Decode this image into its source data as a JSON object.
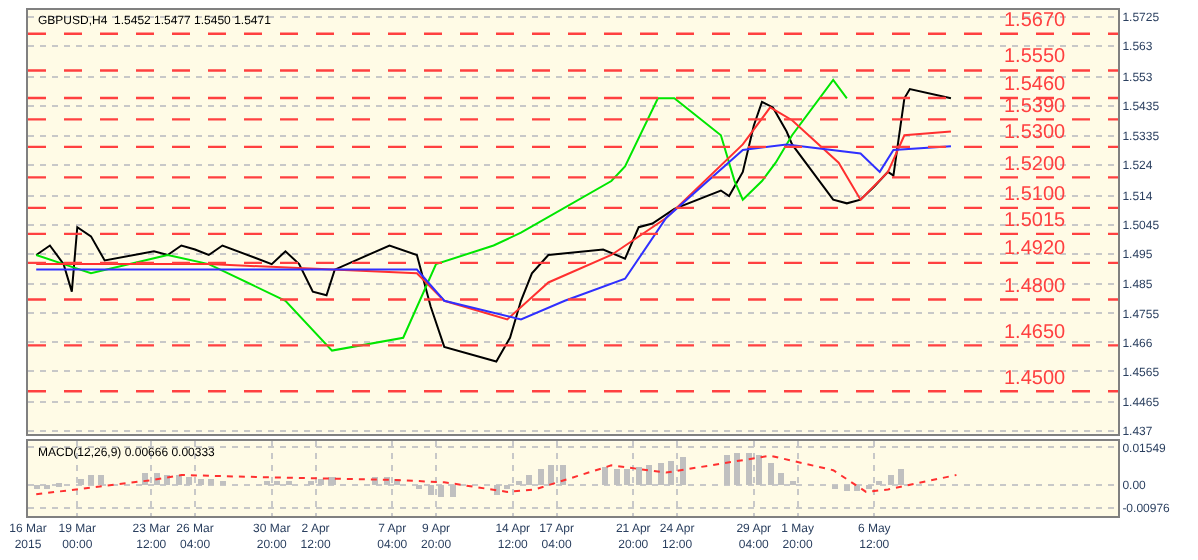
{
  "chart_data": [
    {
      "type": "line",
      "title": "GBPUSD,H4  1.5452 1.5477 1.5450 1.5471",
      "tick_labels": "y",
      "grid": true,
      "marker": "none",
      "line_style": "solid",
      "xlim": [
        "2015-03-16T00:00",
        "2015-05-21T08:00"
      ],
      "ylim": [
        1.4361,
        1.5748
      ],
      "yticks": [
        1.5725,
        1.563,
        1.553,
        1.5435,
        1.5335,
        1.524,
        1.514,
        1.5045,
        1.495,
        1.485,
        1.4755,
        1.466,
        1.4565,
        1.4465,
        1.437
      ],
      "series": [
        {
          "color": "#000000",
          "x": [
            "2015-03-16T12:00",
            "2015-03-17T08:00",
            "2015-03-18T04:00",
            "2015-03-18T16:00",
            "2015-03-19T00:00",
            "2015-03-19T20:00",
            "2015-03-20T16:00",
            "2015-03-23T16:00",
            "2015-03-24T12:00",
            "2015-03-25T08:00",
            "2015-03-26T04:00",
            "2015-03-27T00:00",
            "2015-03-27T20:00",
            "2015-03-30T20:00",
            "2015-03-31T16:00",
            "2015-04-01T12:00",
            "2015-04-02T08:00",
            "2015-04-03T04:00",
            "2015-04-03T16:00",
            "2015-04-07T00:00",
            "2015-04-08T16:00",
            "2015-04-09T12:00",
            "2015-04-10T08:00",
            "2015-04-13T12:00",
            "2015-04-14T08:00",
            "2015-04-15T00:00",
            "2015-04-15T16:00",
            "2015-04-16T16:00",
            "2015-04-20T00:00",
            "2015-04-21T08:00",
            "2015-04-22T04:00",
            "2015-04-23T00:00",
            "2015-04-24T08:00",
            "2015-04-27T04:00",
            "2015-04-27T16:00",
            "2015-04-28T12:00",
            "2015-04-29T04:00",
            "2015-04-29T16:00",
            "2015-04-30T08:00",
            "2015-05-01T04:00",
            "2015-05-01T12:00",
            "2015-05-04T00:00",
            "2015-05-04T20:00",
            "2015-05-05T16:00",
            "2015-05-06T12:00",
            "2015-05-07T08:00",
            "2015-05-07T16:00",
            "2015-05-08T08:00",
            "2015-05-08T16:00",
            "2015-05-11T04:00"
          ],
          "values": [
            1.4946,
            1.4977,
            1.4916,
            1.4826,
            1.5037,
            1.5007,
            1.4928,
            1.4958,
            1.4946,
            1.4977,
            1.4964,
            1.4946,
            1.4977,
            1.4916,
            1.4958,
            1.4916,
            1.4826,
            1.4814,
            1.4898,
            1.4977,
            1.4946,
            1.4778,
            1.4645,
            1.4597,
            1.4675,
            1.4796,
            1.4886,
            1.4946,
            1.4964,
            1.4934,
            1.5037,
            1.5049,
            1.5097,
            1.5157,
            1.5139,
            1.5218,
            1.5369,
            1.5447,
            1.5429,
            1.535,
            1.5308,
            1.5127,
            1.5115,
            1.5127,
            1.517,
            1.5218,
            1.5206,
            1.5459,
            1.5489,
            1.5459
          ]
        },
        {
          "color": "#00e600",
          "x": [
            "2015-03-16T12:00",
            "2015-03-18T04:00",
            "2015-03-19T20:00",
            "2015-03-24T12:00",
            "2015-03-27T00:00",
            "2015-03-31T16:00",
            "2015-04-03T12:00",
            "2015-04-07T20:00",
            "2015-04-09T20:00",
            "2015-04-13T08:00",
            "2015-04-15T00:00",
            "2015-04-20T12:00",
            "2015-04-21T08:00",
            "2015-04-23T08:00",
            "2015-04-24T08:00",
            "2015-04-27T04:00",
            "2015-04-28T00:00",
            "2015-04-28T12:00",
            "2015-04-29T16:00",
            "2015-04-30T12:00",
            "2015-05-01T12:00",
            "2015-05-04T00:00",
            "2015-05-04T20:00"
          ],
          "values": [
            1.4946,
            1.4916,
            1.4886,
            1.4946,
            1.4916,
            1.4796,
            1.4633,
            1.4675,
            1.4916,
            1.4977,
            1.5019,
            1.5188,
            1.5236,
            1.5459,
            1.5459,
            1.5338,
            1.5188,
            1.5127,
            1.5188,
            1.5248,
            1.5338,
            1.5519,
            1.5459
          ]
        },
        {
          "color": "#ff3030",
          "x": [
            "2015-03-16T12:00",
            "2015-03-27T00:00",
            "2015-04-08T16:00",
            "2015-04-10T08:00",
            "2015-04-14T04:00",
            "2015-04-16T16:00",
            "2015-04-20T12:00",
            "2015-04-23T20:00",
            "2015-04-28T12:00",
            "2015-04-30T04:00",
            "2015-05-01T12:00",
            "2015-05-04T08:00",
            "2015-05-05T16:00",
            "2015-05-07T08:00",
            "2015-05-08T08:00",
            "2015-05-11T04:00"
          ],
          "values": [
            1.4916,
            1.4916,
            1.4886,
            1.4796,
            1.4735,
            1.4856,
            1.4946,
            1.5067,
            1.5308,
            1.5429,
            1.5387,
            1.5248,
            1.5127,
            1.5218,
            1.5338,
            1.535
          ]
        },
        {
          "color": "#3030ff",
          "x": [
            "2015-03-16T12:00",
            "2015-04-08T16:00",
            "2015-04-10T08:00",
            "2015-04-15T00:00",
            "2015-04-17T16:00",
            "2015-04-21T08:00",
            "2015-04-23T20:00",
            "2015-04-28T12:00",
            "2015-05-01T04:00",
            "2015-05-05T16:00",
            "2015-05-06T20:00",
            "2015-05-07T16:00",
            "2015-05-11T04:00"
          ],
          "values": [
            1.4898,
            1.4898,
            1.4796,
            1.4735,
            1.4796,
            1.4868,
            1.5067,
            1.529,
            1.5308,
            1.5278,
            1.5218,
            1.529,
            1.5302
          ]
        }
      ],
      "ref_lines": [
        {
          "axis": "y",
          "value": 1.567,
          "label": "1.5670",
          "color": "#ff4040",
          "line_style": "dashed"
        },
        {
          "axis": "y",
          "value": 1.555,
          "label": "1.5550",
          "color": "#ff4040",
          "line_style": "dashed"
        },
        {
          "axis": "y",
          "value": 1.546,
          "label": "1.5460",
          "color": "#ff4040",
          "line_style": "dashed"
        },
        {
          "axis": "y",
          "value": 1.539,
          "label": "1.5390",
          "color": "#ff4040",
          "line_style": "dashed"
        },
        {
          "axis": "y",
          "value": 1.53,
          "label": "1.5300",
          "color": "#ff4040",
          "line_style": "dashed"
        },
        {
          "axis": "y",
          "value": 1.52,
          "label": "1.5200",
          "color": "#ff4040",
          "line_style": "dashed"
        },
        {
          "axis": "y",
          "value": 1.51,
          "label": "1.5100",
          "color": "#ff4040",
          "line_style": "dashed"
        },
        {
          "axis": "y",
          "value": 1.5015,
          "label": "1.5015",
          "color": "#ff4040",
          "line_style": "dashed"
        },
        {
          "axis": "y",
          "value": 1.492,
          "label": "1.4920",
          "color": "#ff4040",
          "line_style": "dashed"
        },
        {
          "axis": "y",
          "value": 1.48,
          "label": "1.4800",
          "color": "#ff4040",
          "line_style": "dashed"
        },
        {
          "axis": "y",
          "value": 1.465,
          "label": "1.4650",
          "color": "#ff4040",
          "line_style": "dashed"
        },
        {
          "axis": "y",
          "value": 1.45,
          "label": "1.4500",
          "color": "#ff4040",
          "line_style": "dashed"
        }
      ]
    },
    {
      "type": "bar",
      "title": "MACD(12,26,9) 0.00666 0.00333",
      "grid": true,
      "xlim": [
        "2015-03-16T00:00",
        "2015-05-21T08:00"
      ],
      "ylim": [
        -0.013,
        0.018
      ],
      "yticks": [
        0.01549,
        {
          "value": 0,
          "label": "0.00"
        },
        -0.00976
      ],
      "xticks": [
        {
          "value": "2015-03-16T00:00",
          "label": "16 Mar 2015"
        },
        {
          "value": "2015-03-19T00:00",
          "label": "19 Mar 00:00"
        },
        {
          "value": "2015-03-23T12:00",
          "label": "23 Mar 12:00"
        },
        {
          "value": "2015-03-26T04:00",
          "label": "26 Mar 04:00"
        },
        {
          "value": "2015-03-30T20:00",
          "label": "30 Mar 20:00"
        },
        {
          "value": "2015-04-02T12:00",
          "label": "2 Apr 12:00"
        },
        {
          "value": "2015-04-07T04:00",
          "label": "7 Apr 04:00"
        },
        {
          "value": "2015-04-09T20:00",
          "label": "9 Apr 20:00"
        },
        {
          "value": "2015-04-14T12:00",
          "label": "14 Apr 12:00"
        },
        {
          "value": "2015-04-17T04:00",
          "label": "17 Apr 04:00"
        },
        {
          "value": "2015-04-21T20:00",
          "label": "21 Apr 20:00"
        },
        {
          "value": "2015-04-24T12:00",
          "label": "24 Apr 12:00"
        },
        {
          "value": "2015-04-29T04:00",
          "label": "29 Apr 04:00"
        },
        {
          "value": "2015-05-01T20:00",
          "label": "1 May 20:00"
        },
        {
          "value": "2015-05-06T12:00",
          "label": "6 May 12:00"
        }
      ],
      "series": [
        {
          "type": "bar",
          "color": "#c0c0c0",
          "x": [
            "2015-03-16T12:00",
            "2015-03-17T04:00",
            "2015-03-17T20:00",
            "2015-03-18T12:00",
            "2015-03-19T04:00",
            "2015-03-19T20:00",
            "2015-03-20T12:00",
            "2015-03-23T04:00",
            "2015-03-23T20:00",
            "2015-03-24T12:00",
            "2015-03-25T04:00",
            "2015-03-25T20:00",
            "2015-03-26T12:00",
            "2015-03-27T04:00",
            "2015-03-27T20:00",
            "2015-03-30T12:00",
            "2015-03-31T04:00",
            "2015-03-31T20:00",
            "2015-04-01T12:00",
            "2015-04-02T04:00",
            "2015-04-02T20:00",
            "2015-04-03T12:00",
            "2015-04-06T04:00",
            "2015-04-06T20:00",
            "2015-04-07T12:00",
            "2015-04-08T04:00",
            "2015-04-08T20:00",
            "2015-04-09T12:00",
            "2015-04-10T04:00",
            "2015-04-10T20:00",
            "2015-04-13T12:00",
            "2015-04-14T04:00",
            "2015-04-14T20:00",
            "2015-04-15T12:00",
            "2015-04-16T04:00",
            "2015-04-16T20:00",
            "2015-04-17T12:00",
            "2015-04-20T04:00",
            "2015-04-20T20:00",
            "2015-04-21T12:00",
            "2015-04-22T04:00",
            "2015-04-22T20:00",
            "2015-04-23T12:00",
            "2015-04-24T04:00",
            "2015-04-24T20:00",
            "2015-04-27T12:00",
            "2015-04-28T04:00",
            "2015-04-28T20:00",
            "2015-04-29T12:00",
            "2015-04-30T04:00",
            "2015-04-30T20:00",
            "2015-05-01T12:00",
            "2015-05-04T04:00",
            "2015-05-04T20:00",
            "2015-05-05T12:00",
            "2015-05-06T04:00",
            "2015-05-06T20:00",
            "2015-05-07T12:00",
            "2015-05-08T04:00"
          ],
          "values": [
            -0.002,
            -0.002,
            -0.001,
            0.0,
            0.002,
            0.004,
            0.004,
            0.005,
            0.005,
            0.004,
            0.004,
            0.003,
            0.002,
            0.002,
            0.001,
            0.001,
            0.001,
            0.001,
            0.0,
            0.001,
            0.002,
            0.003,
            0.003,
            0.003,
            0.002,
            0.0,
            -0.002,
            -0.004,
            -0.005,
            -0.005,
            -0.004,
            -0.002,
            0.001,
            0.004,
            0.006,
            0.008,
            0.008,
            0.007,
            0.006,
            0.006,
            0.007,
            0.008,
            0.009,
            0.01,
            0.011,
            0.012,
            0.013,
            0.013,
            0.012,
            0.009,
            0.005,
            0.001,
            -0.002,
            -0.003,
            -0.003,
            -0.002,
            0.001,
            0.004,
            0.006
          ]
        },
        {
          "type": "line",
          "line_style": "dotted",
          "color": "#ff3030",
          "x": [
            "2015-03-16T12:00",
            "2015-03-23T16:00",
            "2015-03-25T08:00",
            "2015-03-30T20:00",
            "2015-04-07T00:00",
            "2015-04-10T08:00",
            "2015-04-14T04:00",
            "2015-04-15T20:00",
            "2015-04-20T12:00",
            "2015-04-23T20:00",
            "2015-04-30T04:00",
            "2015-05-04T00:00",
            "2015-05-06T00:00",
            "2015-05-07T08:00",
            "2015-05-11T12:00"
          ],
          "values": [
            -0.004,
            0.002,
            0.004,
            0.003,
            0.002,
            0.001,
            -0.003,
            -0.002,
            0.008,
            0.005,
            0.012,
            0.006,
            -0.003,
            -0.002,
            0.004
          ]
        }
      ]
    }
  ]
}
